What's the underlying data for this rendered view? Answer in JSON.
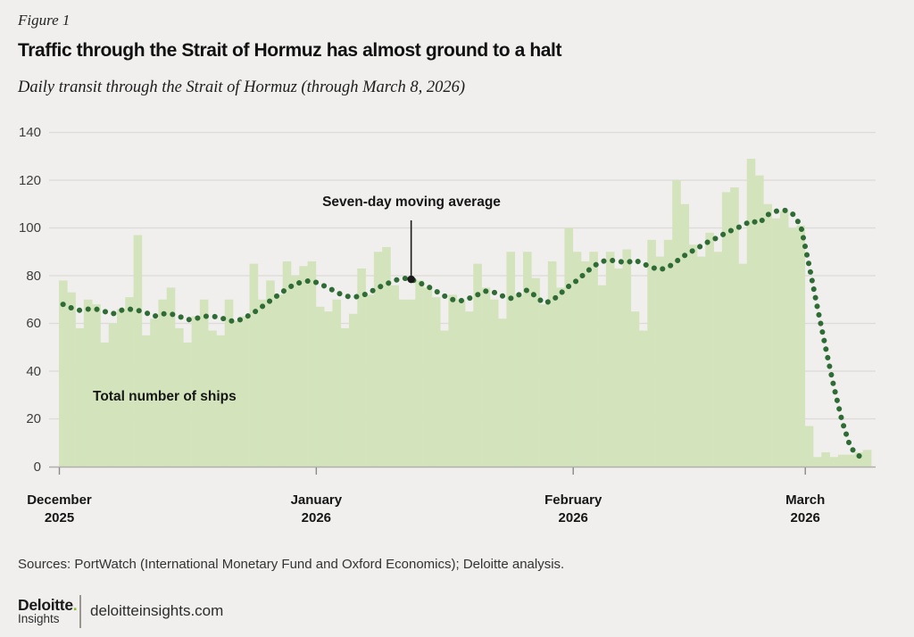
{
  "figure_label": "Figure 1",
  "title": "Traffic through the Strait of Hormuz has almost ground to a halt",
  "subtitle": "Daily transit through the Strait of Hormuz (through March 8, 2026)",
  "annotations": {
    "moving_average": "Seven-day moving average",
    "total_ships": "Total number of ships"
  },
  "source_note": "Sources: PortWatch (International Monetary Fund and Oxford Economics); Deloitte analysis.",
  "footer": {
    "brand": "Deloitte",
    "brand_dot": ".",
    "brand_sub": "Insights",
    "site": "deloitteinsights.com"
  },
  "colors": {
    "background": "#f0efed",
    "bars": "#d3e4bc",
    "moving_average_line": "#2e6b35",
    "gridline": "#dcdbd7",
    "axis_line": "#b0afac",
    "month_tick": "#8b8a88",
    "annotation": "#1a1a1a",
    "deloitte_green": "#86bc25"
  },
  "chart_data": {
    "type": "area",
    "title": "Daily transit through the Strait of Hormuz (through March 8, 2026)",
    "x_start_date": "2025-12-01",
    "x_end_date": "2026-03-08",
    "ylim": [
      0,
      140
    ],
    "yticks": [
      0,
      20,
      40,
      60,
      80,
      100,
      120,
      140
    ],
    "grid": "horizontal",
    "legend_position": "none",
    "xticks": [
      {
        "label": "December",
        "year": "2025",
        "day_index": 0
      },
      {
        "label": "January",
        "year": "2026",
        "day_index": 31
      },
      {
        "label": "February",
        "year": "2026",
        "day_index": 62
      },
      {
        "label": "March",
        "year": "2026",
        "day_index": 90
      }
    ],
    "annotation_pointer_day_index": 42,
    "series": [
      {
        "name": "Total number of ships",
        "type": "area",
        "values": [
          78,
          73,
          58,
          70,
          68,
          52,
          60,
          66,
          71,
          97,
          55,
          62,
          70,
          75,
          58,
          52,
          63,
          70,
          57,
          55,
          70,
          61,
          63,
          85,
          70,
          78,
          72,
          86,
          80,
          84,
          86,
          67,
          65,
          70,
          58,
          64,
          83,
          72,
          90,
          92,
          76,
          70,
          70,
          78,
          75,
          71,
          57,
          72,
          70,
          65,
          85,
          75,
          70,
          62,
          90,
          72,
          90,
          79,
          68,
          86,
          75,
          100,
          90,
          86,
          90,
          76,
          90,
          83,
          91,
          65,
          57,
          95,
          88,
          95,
          120,
          110,
          93,
          88,
          98,
          90,
          115,
          117,
          85,
          129,
          122,
          110,
          104,
          107,
          100,
          101,
          17,
          4,
          6,
          4,
          5,
          5,
          6,
          7
        ]
      },
      {
        "name": "Seven-day moving average",
        "type": "dotted_line",
        "values": [
          68,
          66.5,
          65.5,
          66,
          66,
          65,
          64,
          65.5,
          66,
          65.5,
          64.5,
          63,
          64,
          64,
          63,
          61.5,
          62,
          63,
          63,
          62.5,
          61,
          61,
          62.5,
          64.5,
          67,
          69.5,
          72,
          74.5,
          76.5,
          77.5,
          78,
          76.5,
          75,
          73,
          71.5,
          71,
          71.5,
          73,
          75,
          76.5,
          78,
          79,
          78.5,
          77,
          75.5,
          73.5,
          71.5,
          70,
          69.5,
          70.5,
          72,
          73.5,
          73,
          71.5,
          70.5,
          72,
          74,
          71.5,
          68.5,
          69.5,
          72.5,
          75.5,
          78,
          81,
          84,
          86,
          86.5,
          86,
          85.5,
          86.5,
          85,
          83.5,
          82.5,
          83.5,
          86,
          88.5,
          90.5,
          92.5,
          94.5,
          96,
          98,
          99.5,
          101,
          103,
          102,
          105.5,
          107,
          107.5,
          106,
          101,
          84.5,
          67,
          50,
          33.5,
          19,
          8,
          4.5,
          4
        ]
      }
    ]
  }
}
